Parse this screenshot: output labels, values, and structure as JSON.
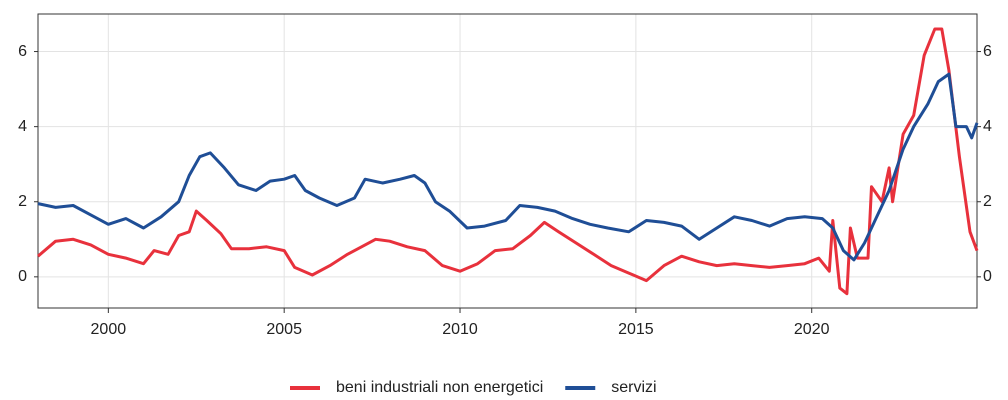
{
  "chart_data": {
    "type": "line",
    "xlim": [
      1998,
      2024.7
    ],
    "xticks": [
      2000,
      2005,
      2010,
      2015,
      2020
    ],
    "ylim": [
      -0.83,
      7.0
    ],
    "yticks": [
      0,
      2,
      4,
      6
    ],
    "y2lim": [
      -0.83,
      7.0
    ],
    "y2ticks": [
      0,
      2,
      4,
      6
    ],
    "grid": true,
    "legend": "bottom",
    "series": [
      {
        "name": "beni industriali non energetici",
        "color": "#e8313c",
        "x": [
          1998.0,
          1998.5,
          1999.0,
          1999.5,
          2000.0,
          2000.5,
          2001.0,
          2001.3,
          2001.7,
          2002.0,
          2002.3,
          2002.5,
          2002.8,
          2003.2,
          2003.5,
          2004.0,
          2004.5,
          2005.0,
          2005.3,
          2005.8,
          2006.3,
          2006.8,
          2007.2,
          2007.6,
          2008.0,
          2008.5,
          2009.0,
          2009.5,
          2010.0,
          2010.5,
          2011.0,
          2011.5,
          2012.0,
          2012.4,
          2012.8,
          2013.3,
          2013.8,
          2014.3,
          2014.8,
          2015.3,
          2015.8,
          2016.3,
          2016.8,
          2017.3,
          2017.8,
          2018.3,
          2018.8,
          2019.3,
          2019.8,
          2020.2,
          2020.5,
          2020.6,
          2020.8,
          2021.0,
          2021.1,
          2021.3,
          2021.6,
          2021.7,
          2022.0,
          2022.2,
          2022.3,
          2022.6,
          2022.9,
          2023.2,
          2023.5,
          2023.7,
          2023.9,
          2024.2,
          2024.5,
          2024.7
        ],
        "values": [
          0.55,
          0.95,
          1.0,
          0.85,
          0.6,
          0.5,
          0.35,
          0.7,
          0.6,
          1.1,
          1.2,
          1.75,
          1.5,
          1.15,
          0.75,
          0.75,
          0.8,
          0.7,
          0.25,
          0.05,
          0.3,
          0.6,
          0.8,
          1.0,
          0.95,
          0.8,
          0.7,
          0.3,
          0.15,
          0.35,
          0.7,
          0.75,
          1.1,
          1.45,
          1.2,
          0.9,
          0.6,
          0.3,
          0.1,
          -0.1,
          0.3,
          0.55,
          0.4,
          0.3,
          0.35,
          0.3,
          0.25,
          0.3,
          0.35,
          0.5,
          0.15,
          1.5,
          -0.3,
          -0.45,
          1.3,
          0.5,
          0.5,
          2.4,
          2.0,
          2.9,
          2.0,
          3.8,
          4.3,
          5.9,
          6.6,
          6.6,
          5.5,
          3.2,
          1.2,
          0.7
        ]
      },
      {
        "name": "servizi",
        "color": "#1f4e96",
        "x": [
          1998.0,
          1998.5,
          1999.0,
          1999.5,
          2000.0,
          2000.5,
          2001.0,
          2001.5,
          2002.0,
          2002.3,
          2002.6,
          2002.9,
          2003.3,
          2003.7,
          2004.2,
          2004.6,
          2005.0,
          2005.3,
          2005.6,
          2006.0,
          2006.5,
          2007.0,
          2007.3,
          2007.8,
          2008.3,
          2008.7,
          2009.0,
          2009.3,
          2009.7,
          2010.2,
          2010.7,
          2011.3,
          2011.7,
          2012.2,
          2012.7,
          2013.2,
          2013.7,
          2014.2,
          2014.8,
          2015.3,
          2015.8,
          2016.3,
          2016.8,
          2017.3,
          2017.8,
          2018.3,
          2018.8,
          2019.3,
          2019.8,
          2020.3,
          2020.6,
          2020.9,
          2021.2,
          2021.5,
          2021.8,
          2022.2,
          2022.6,
          2022.9,
          2023.3,
          2023.6,
          2023.9,
          2024.1,
          2024.4,
          2024.55,
          2024.7
        ],
        "values": [
          1.95,
          1.85,
          1.9,
          1.65,
          1.4,
          1.55,
          1.3,
          1.6,
          2.0,
          2.7,
          3.2,
          3.3,
          2.9,
          2.45,
          2.3,
          2.55,
          2.6,
          2.7,
          2.3,
          2.1,
          1.9,
          2.1,
          2.6,
          2.5,
          2.6,
          2.7,
          2.5,
          2.0,
          1.75,
          1.3,
          1.35,
          1.5,
          1.9,
          1.85,
          1.75,
          1.55,
          1.4,
          1.3,
          1.2,
          1.5,
          1.45,
          1.35,
          1.0,
          1.3,
          1.6,
          1.5,
          1.35,
          1.55,
          1.6,
          1.55,
          1.3,
          0.7,
          0.45,
          0.9,
          1.5,
          2.3,
          3.4,
          4.0,
          4.6,
          5.2,
          5.4,
          4.0,
          4.0,
          3.7,
          4.1
        ]
      }
    ]
  }
}
